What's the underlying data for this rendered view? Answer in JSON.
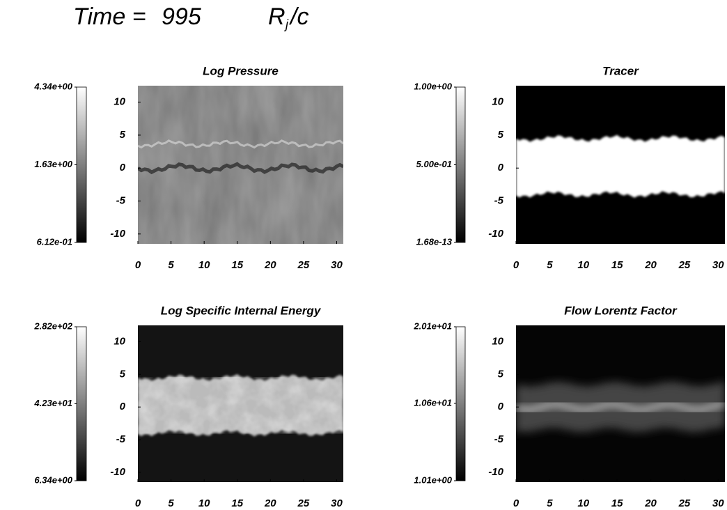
{
  "title": {
    "prefix": "Time =",
    "time": 995,
    "unit": "R",
    "unit_sub": "j",
    "unit_tail": "/c"
  },
  "chart_data": [
    {
      "type": "heatmap",
      "title": "Log Pressure",
      "xlim": [
        0,
        31
      ],
      "ylim": [
        -11.5,
        12.5
      ],
      "xticks": [
        0,
        5,
        10,
        15,
        20,
        25,
        30
      ],
      "yticks": [
        -10,
        -5,
        0,
        5,
        10
      ],
      "colorbar": {
        "scale": "log",
        "lim": [
          0.612,
          4.34
        ],
        "ticks": [
          {
            "value": 4.34,
            "label": "4.34e+00"
          },
          {
            "value": 1.63,
            "label": "1.63e+00"
          },
          {
            "value": 0.612,
            "label": "6.12e-01"
          }
        ]
      }
    },
    {
      "type": "heatmap",
      "title": "Tracer",
      "xlim": [
        0,
        31
      ],
      "ylim": [
        -11.5,
        12.5
      ],
      "xticks": [
        0,
        5,
        10,
        15,
        20,
        25,
        30
      ],
      "yticks": [
        -10,
        -5,
        0,
        5,
        10
      ],
      "colorbar": {
        "scale": "linear",
        "lim": [
          1.68e-13,
          1
        ],
        "ticks": [
          {
            "value": 1,
            "label": "1.00e+00"
          },
          {
            "value": 0.5,
            "label": "5.00e-01"
          },
          {
            "value": 1.68e-13,
            "label": "1.68e-13"
          }
        ]
      }
    },
    {
      "type": "heatmap",
      "title": "Log Specific Internal Energy",
      "xlim": [
        0,
        31
      ],
      "ylim": [
        -11.5,
        12.5
      ],
      "xticks": [
        0,
        5,
        10,
        15,
        20,
        25,
        30
      ],
      "yticks": [
        -10,
        -5,
        0,
        5,
        10
      ],
      "colorbar": {
        "scale": "log",
        "lim": [
          6.34,
          282
        ],
        "ticks": [
          {
            "value": 282,
            "label": "2.82e+02"
          },
          {
            "value": 42.3,
            "label": "4.23e+01"
          },
          {
            "value": 6.34,
            "label": "6.34e+00"
          }
        ]
      }
    },
    {
      "type": "heatmap",
      "title": "Flow Lorentz Factor",
      "xlim": [
        0,
        31
      ],
      "ylim": [
        -11.5,
        12.5
      ],
      "xticks": [
        0,
        5,
        10,
        15,
        20,
        25,
        30
      ],
      "yticks": [
        -10,
        -5,
        0,
        5,
        10
      ],
      "colorbar": {
        "scale": "linear",
        "lim": [
          1.01,
          20.1
        ],
        "ticks": [
          {
            "value": 20.1,
            "label": "2.01e+01"
          },
          {
            "value": 10.6,
            "label": "1.06e+01"
          },
          {
            "value": 1.01,
            "label": "1.01e+00"
          }
        ]
      }
    }
  ]
}
